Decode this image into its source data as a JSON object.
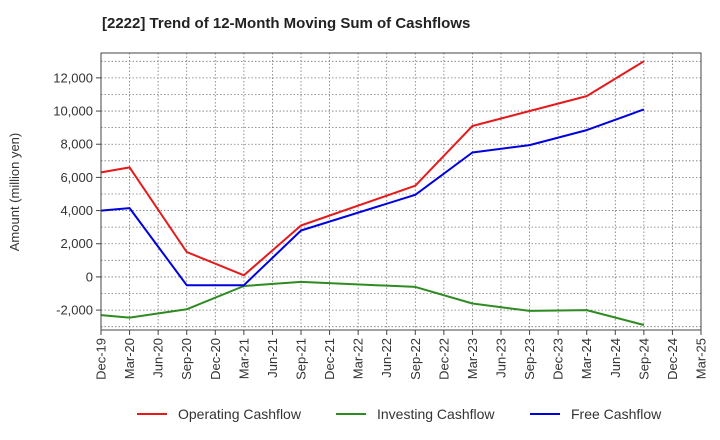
{
  "chart_data": {
    "type": "line",
    "title": "[2222]  Trend of 12-Month Moving Sum of Cashflows",
    "xlabel": "",
    "ylabel": "Amount (million yen)",
    "x": [
      "Dec-19",
      "Mar-20",
      "Jun-20",
      "Sep-20",
      "Dec-20",
      "Mar-21",
      "Jun-21",
      "Sep-21",
      "Dec-21",
      "Mar-22",
      "Jun-22",
      "Sep-22",
      "Dec-22",
      "Mar-23",
      "Jun-23",
      "Sep-23",
      "Dec-23",
      "Mar-24",
      "Jun-24",
      "Sep-24",
      "Dec-24",
      "Mar-25"
    ],
    "ylim": [
      -3200,
      13500
    ],
    "yticks": [
      -2000,
      0,
      2000,
      4000,
      6000,
      8000,
      10000,
      12000
    ],
    "ytick_labels": [
      "-2,000",
      "0",
      "2,000",
      "4,000",
      "6,000",
      "8,000",
      "10,000",
      "12,000"
    ],
    "grid": true,
    "legend_position": "bottom",
    "series": [
      {
        "name": "Operating Cashflow",
        "color": "#e41a1c",
        "values": [
          6300,
          6600,
          null,
          1500,
          null,
          100,
          null,
          3100,
          null,
          null,
          null,
          5500,
          null,
          9100,
          null,
          null,
          null,
          10900,
          null,
          13000,
          null,
          null
        ]
      },
      {
        "name": "Investing Cashflow",
        "color": "#2e8b22",
        "values": [
          -2300,
          -2450,
          null,
          -1950,
          null,
          -550,
          null,
          -300,
          null,
          null,
          null,
          -600,
          null,
          -1600,
          null,
          -2050,
          null,
          -2000,
          null,
          -2900,
          null,
          null
        ]
      },
      {
        "name": "Free Cashflow",
        "color": "#0000dd",
        "values": [
          4000,
          4150,
          null,
          -500,
          null,
          -500,
          null,
          2800,
          null,
          null,
          null,
          4950,
          null,
          7500,
          null,
          7950,
          null,
          8850,
          null,
          10100,
          null,
          null
        ]
      }
    ]
  }
}
